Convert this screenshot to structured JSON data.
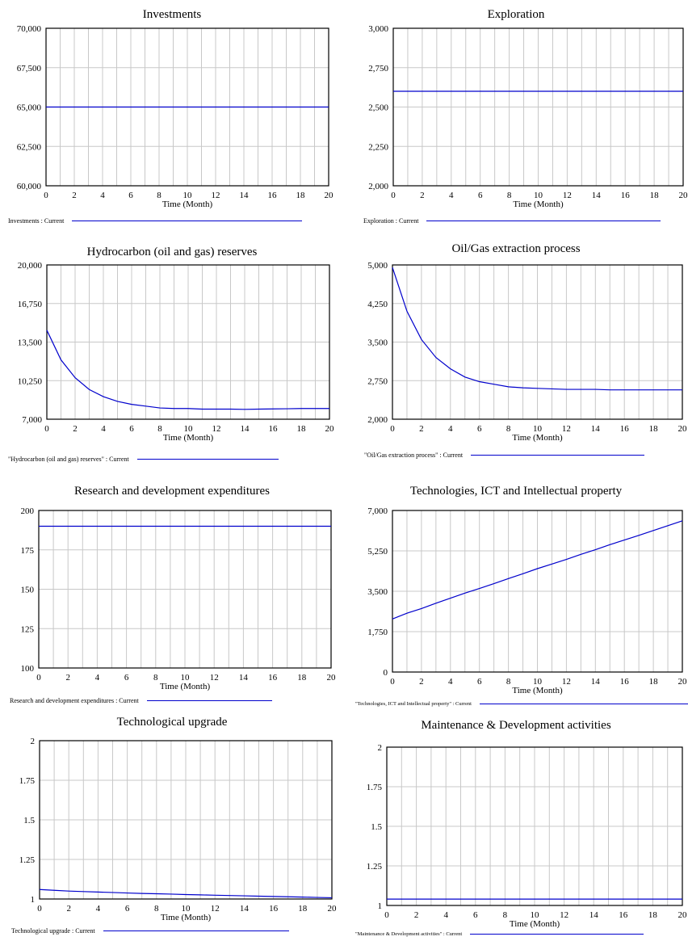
{
  "line_color": "#0000cc",
  "chart_data": [
    {
      "type": "line",
      "title": "Investments",
      "xlabel": "Time (Month)",
      "ylabel": "",
      "xlim": [
        0,
        20
      ],
      "ylim": [
        60000,
        70000
      ],
      "x_ticks": [
        0,
        2,
        4,
        6,
        8,
        10,
        12,
        14,
        16,
        18,
        20
      ],
      "y_ticks": [
        60000,
        62500,
        65000,
        67500,
        70000
      ],
      "y_tick_labels": [
        "60,000",
        "62,500",
        "65,000",
        "67,500",
        "70,000"
      ],
      "grid": "vertical",
      "legend": "Investments : Current",
      "series": [
        {
          "x": [
            0,
            20
          ],
          "values": [
            65000,
            65000
          ]
        }
      ]
    },
    {
      "type": "line",
      "title": "Exploration",
      "xlabel": "Time (Month)",
      "ylabel": "",
      "xlim": [
        0,
        20
      ],
      "ylim": [
        2000,
        3000
      ],
      "x_ticks": [
        0,
        2,
        4,
        6,
        8,
        10,
        12,
        14,
        16,
        18,
        20
      ],
      "y_ticks": [
        2000,
        2250,
        2500,
        2750,
        3000
      ],
      "y_tick_labels": [
        "2,000",
        "2,250",
        "2,500",
        "2,750",
        "3,000"
      ],
      "grid": "vertical",
      "legend": "Exploration : Current",
      "series": [
        {
          "x": [
            0,
            20
          ],
          "values": [
            2600,
            2600
          ]
        }
      ]
    },
    {
      "type": "line",
      "title": "Hydrocarbon (oil and gas) reserves",
      "xlabel": "Time (Month)",
      "ylabel": "",
      "xlim": [
        0,
        20
      ],
      "ylim": [
        7000,
        20000
      ],
      "x_ticks": [
        0,
        2,
        4,
        6,
        8,
        10,
        12,
        14,
        16,
        18,
        20
      ],
      "y_ticks": [
        7000,
        10250,
        13500,
        16750,
        20000
      ],
      "y_tick_labels": [
        "7,000",
        "10,250",
        "13,500",
        "16,750",
        "20,000"
      ],
      "grid": "vertical",
      "legend": "\"Hydrocarbon (oil and gas) reserves\" : Current",
      "series": [
        {
          "x": [
            0,
            1,
            2,
            3,
            4,
            5,
            6,
            7,
            8,
            9,
            10,
            11,
            12,
            13,
            14,
            15,
            16,
            17,
            18,
            19,
            20
          ],
          "values": [
            14500,
            12000,
            10500,
            9500,
            8900,
            8500,
            8250,
            8100,
            7950,
            7900,
            7900,
            7850,
            7850,
            7850,
            7830,
            7850,
            7870,
            7880,
            7900,
            7900,
            7900
          ]
        }
      ]
    },
    {
      "type": "line",
      "title": "Oil/Gas extraction process",
      "xlabel": "Time (Month)",
      "ylabel": "",
      "xlim": [
        0,
        20
      ],
      "ylim": [
        2000,
        5000
      ],
      "x_ticks": [
        0,
        2,
        4,
        6,
        8,
        10,
        12,
        14,
        16,
        18,
        20
      ],
      "y_ticks": [
        2000,
        2750,
        3500,
        4250,
        5000
      ],
      "y_tick_labels": [
        "2,000",
        "2,750",
        "3,500",
        "4,250",
        "5,000"
      ],
      "grid": "vertical",
      "legend": "\"Oil/Gas extraction process\" : Current",
      "series": [
        {
          "x": [
            0,
            1,
            2,
            3,
            4,
            5,
            6,
            7,
            8,
            9,
            10,
            11,
            12,
            13,
            14,
            15,
            16,
            17,
            18,
            19,
            20
          ],
          "values": [
            4950,
            4100,
            3550,
            3200,
            2980,
            2820,
            2730,
            2680,
            2630,
            2610,
            2600,
            2590,
            2580,
            2580,
            2580,
            2570,
            2570,
            2570,
            2570,
            2570,
            2570
          ]
        }
      ]
    },
    {
      "type": "line",
      "title": "Research and development expenditures",
      "xlabel": "Time (Month)",
      "ylabel": "",
      "xlim": [
        0,
        20
      ],
      "ylim": [
        100,
        200
      ],
      "x_ticks": [
        0,
        2,
        4,
        6,
        8,
        10,
        12,
        14,
        16,
        18,
        20
      ],
      "y_ticks": [
        100,
        125,
        150,
        175,
        200
      ],
      "y_tick_labels": [
        "100",
        "125",
        "150",
        "175",
        "200"
      ],
      "grid": "vertical",
      "legend": "Research and development expenditures : Current",
      "series": [
        {
          "x": [
            0,
            20
          ],
          "values": [
            190,
            190
          ]
        }
      ]
    },
    {
      "type": "line",
      "title": "Technologies, ICT and Intellectual property",
      "xlabel": "Time (Month)",
      "ylabel": "",
      "xlim": [
        0,
        20
      ],
      "ylim": [
        0,
        7000
      ],
      "x_ticks": [
        0,
        2,
        4,
        6,
        8,
        10,
        12,
        14,
        16,
        18,
        20
      ],
      "y_ticks": [
        0,
        1750,
        3500,
        5250,
        7000
      ],
      "y_tick_labels": [
        "0",
        "1,750",
        "3,500",
        "5,250",
        "7,000"
      ],
      "grid": "vertical",
      "legend": "\"Technologies, ICT and Intellectual property\" : Current",
      "series": [
        {
          "x": [
            0,
            1,
            2,
            3,
            4,
            5,
            6,
            7,
            8,
            9,
            10,
            11,
            12,
            13,
            14,
            15,
            16,
            17,
            18,
            19,
            20
          ],
          "values": [
            2300,
            2550,
            2750,
            2980,
            3200,
            3420,
            3620,
            3830,
            4050,
            4260,
            4480,
            4680,
            4880,
            5100,
            5300,
            5520,
            5720,
            5920,
            6130,
            6340,
            6550
          ]
        }
      ]
    },
    {
      "type": "line",
      "title": "Technological upgrade",
      "xlabel": "Time (Month)",
      "ylabel": "",
      "xlim": [
        0,
        20
      ],
      "ylim": [
        1,
        2
      ],
      "x_ticks": [
        0,
        2,
        4,
        6,
        8,
        10,
        12,
        14,
        16,
        18,
        20
      ],
      "y_ticks": [
        1,
        1.25,
        1.5,
        1.75,
        2
      ],
      "y_tick_labels": [
        "1",
        "1.25",
        "1.5",
        "1.75",
        "2"
      ],
      "grid": "vertical",
      "legend": "Technological upgrade : Current",
      "series": [
        {
          "x": [
            0,
            1,
            2,
            3,
            4,
            5,
            6,
            7,
            8,
            9,
            10,
            11,
            12,
            13,
            14,
            15,
            16,
            17,
            18,
            19,
            20
          ],
          "values": [
            1.06,
            1.055,
            1.05,
            1.047,
            1.044,
            1.041,
            1.038,
            1.035,
            1.033,
            1.031,
            1.028,
            1.026,
            1.024,
            1.022,
            1.02,
            1.018,
            1.016,
            1.014,
            1.012,
            1.01,
            1.008
          ]
        }
      ]
    },
    {
      "type": "line",
      "title": "Maintenance & Development activities",
      "xlabel": "Time (Month)",
      "ylabel": "",
      "xlim": [
        0,
        20
      ],
      "ylim": [
        1,
        2
      ],
      "x_ticks": [
        0,
        2,
        4,
        6,
        8,
        10,
        12,
        14,
        16,
        18,
        20
      ],
      "y_ticks": [
        1,
        1.25,
        1.5,
        1.75,
        2
      ],
      "y_tick_labels": [
        "1",
        "1.25",
        "1.5",
        "1.75",
        "2"
      ],
      "grid": "vertical",
      "legend": "\"Maintenance & Development activities\" : Current",
      "series": [
        {
          "x": [
            0,
            20
          ],
          "values": [
            1.04,
            1.04
          ]
        }
      ]
    }
  ]
}
